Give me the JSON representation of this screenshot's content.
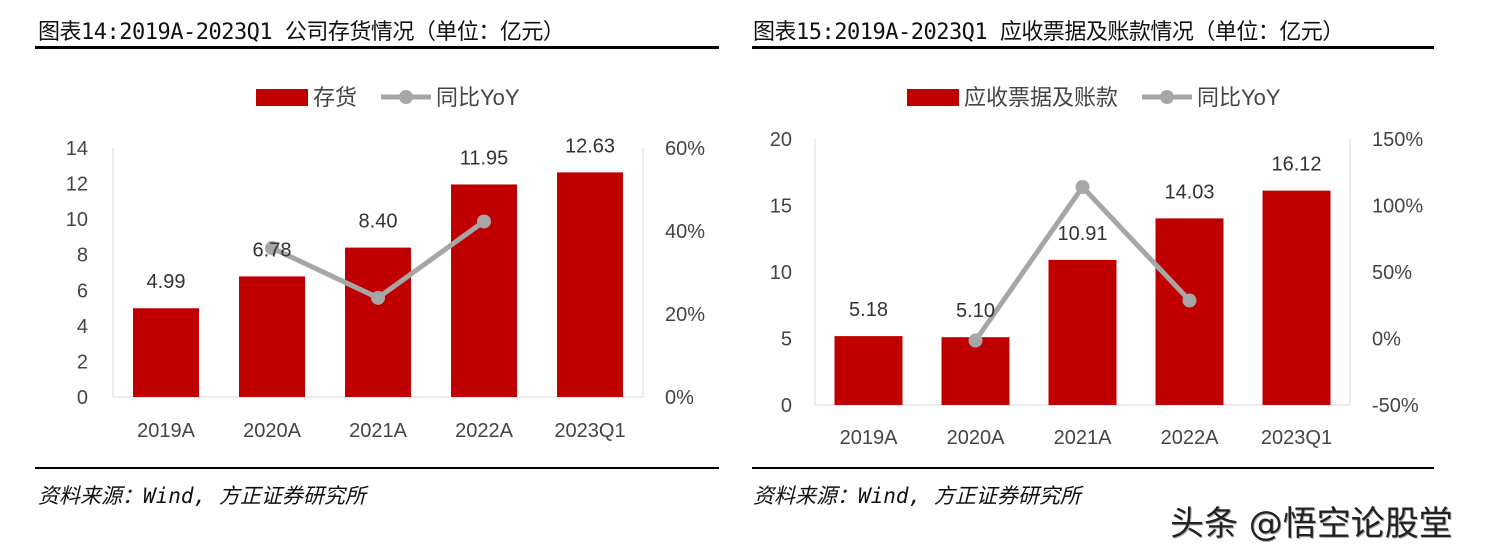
{
  "chart_data": [
    {
      "type": "bar",
      "title": "图表14:2019A-2023Q1 公司存货情况（单位：亿元）",
      "categories": [
        "2019A",
        "2020A",
        "2021A",
        "2022A",
        "2023Q1"
      ],
      "series": [
        {
          "name": "存货",
          "type": "bar",
          "axis": "left",
          "values": [
            4.99,
            6.78,
            8.4,
            11.95,
            12.63
          ],
          "labels": [
            "4.99",
            "6.78",
            "8.40",
            "11.95",
            "12.63"
          ],
          "color": "#C00000"
        },
        {
          "name": "同比YoY",
          "type": "line",
          "axis": "right",
          "values": [
            null,
            35.9,
            23.9,
            42.3,
            null
          ],
          "color": "#A6A6A6"
        }
      ],
      "ylim": [
        0,
        14
      ],
      "yticks": [
        "0",
        "2",
        "4",
        "6",
        "8",
        "10",
        "12",
        "14"
      ],
      "y2lim": [
        0,
        60
      ],
      "y2ticks": [
        "0%",
        "20%",
        "40%",
        "60%"
      ],
      "legend": "top",
      "grid": false,
      "source": "资料来源：Wind, 方正证券研究所"
    },
    {
      "type": "bar",
      "title": "图表15:2019A-2023Q1 应收票据及账款情况（单位：亿元）",
      "categories": [
        "2019A",
        "2020A",
        "2021A",
        "2022A",
        "2023Q1"
      ],
      "series": [
        {
          "name": "应收票据及账款",
          "type": "bar",
          "axis": "left",
          "values": [
            5.18,
            5.1,
            10.91,
            14.03,
            16.12
          ],
          "labels": [
            "5.18",
            "5.10",
            "10.91",
            "14.03",
            "16.12"
          ],
          "color": "#C00000"
        },
        {
          "name": "同比YoY",
          "type": "line",
          "axis": "right",
          "values": [
            null,
            -1.5,
            113.9,
            28.6,
            null
          ],
          "color": "#A6A6A6"
        }
      ],
      "ylim": [
        0,
        20
      ],
      "yticks": [
        "0",
        "5",
        "10",
        "15",
        "20"
      ],
      "y2lim": [
        -50,
        150
      ],
      "y2ticks": [
        "-50%",
        "0%",
        "50%",
        "100%",
        "150%"
      ],
      "legend": "top",
      "grid": false,
      "source": "资料来源：Wind, 方正证券研究所"
    }
  ],
  "watermark": "头条 @悟空论股堂"
}
